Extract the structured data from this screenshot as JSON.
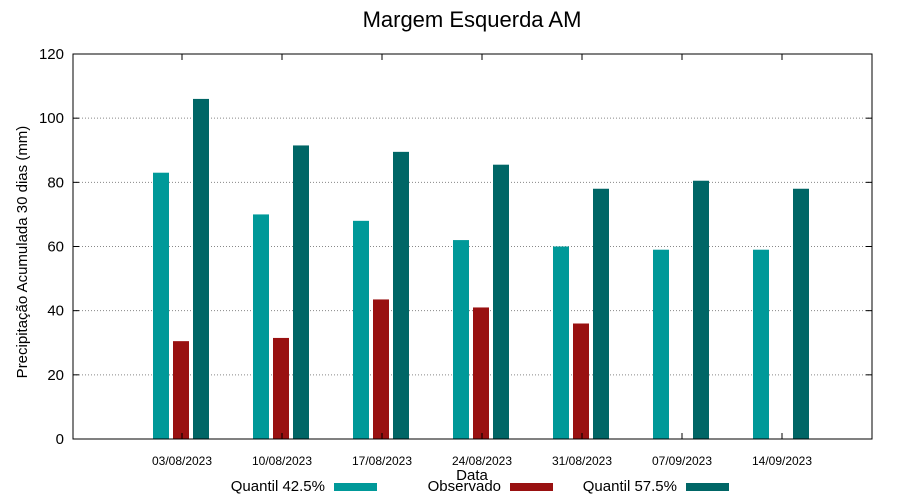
{
  "chart_data": {
    "type": "bar",
    "title": "Margem Esquerda AM",
    "xlabel": "Data",
    "ylabel": "Precipitação Acumulada 30 dias (mm)",
    "ylim": [
      0,
      120
    ],
    "yticks": [
      0,
      20,
      40,
      60,
      80,
      100,
      120
    ],
    "grid": "horizontal dotted",
    "legend_position": "bottom",
    "categories": [
      "03/08/2023",
      "10/08/2023",
      "17/08/2023",
      "24/08/2023",
      "31/08/2023",
      "07/09/2023",
      "14/09/2023"
    ],
    "series": [
      {
        "name": "Quantil 42.5%",
        "color": "#009999",
        "values": [
          83,
          70,
          68,
          62,
          60,
          59,
          59
        ]
      },
      {
        "name": "Observado",
        "color": "#991111",
        "values": [
          30.5,
          31.5,
          43.5,
          41,
          36,
          null,
          null
        ]
      },
      {
        "name": "Quantil 57.5%",
        "color": "#006666",
        "values": [
          106,
          91.5,
          89.5,
          85.5,
          78,
          80.5,
          78
        ]
      }
    ]
  }
}
